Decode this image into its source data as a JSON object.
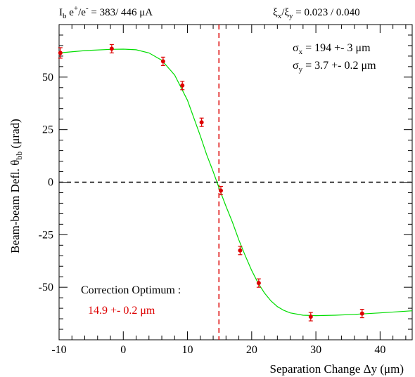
{
  "header": {
    "current_label": "I",
    "current_sub": "b",
    "current_species_e1": " e",
    "current_sup_plus": "+",
    "current_slash": "/e",
    "current_sup_minus": "-",
    "current_values": " =   383/  446 μA",
    "tune_xi1": "ξ",
    "tune_sub_x": "x",
    "tune_slash": "/ξ",
    "tune_sub_y": "y",
    "tune_values": " =  0.023 / 0.040"
  },
  "annotations": {
    "sigma": "σ",
    "sigma_x_sub": "x",
    "sigma_x_value": " = 194 +- 3 μm",
    "sigma_y_sub": "y",
    "sigma_y_value": " =  3.7 +- 0.2 μm",
    "optimum_label": "Correction Optimum :",
    "optimum_value": "14.9 +-  0.2 μm"
  },
  "chart_data": {
    "type": "scatter",
    "xlabel": "Separation Change Δy (μm)",
    "ylabel_main": "Beam-beam Defl. θ",
    "ylabel_sub": "bb",
    "ylabel_unit": " (μrad)",
    "xlim": [
      -10,
      45
    ],
    "ylim": [
      -75,
      75
    ],
    "xticks": [
      -10,
      0,
      10,
      20,
      30,
      40
    ],
    "yticks": [
      50,
      25,
      0,
      -25,
      -50
    ],
    "grid": false,
    "colors": {
      "points": "#dd0000",
      "fit_curve": "#00dd00",
      "optimum_line": "#dd0000",
      "zero_line": "#000000"
    },
    "series": [
      {
        "values": [
          {
            "x": -9.8,
            "y": 61.5,
            "err": 2.5
          },
          {
            "x": -1.8,
            "y": 63.5,
            "err": 2.0
          },
          {
            "x": 6.2,
            "y": 57.5,
            "err": 2.0
          },
          {
            "x": 9.2,
            "y": 46.0,
            "err": 2.0
          },
          {
            "x": 12.2,
            "y": 28.5,
            "err": 2.0
          },
          {
            "x": 15.2,
            "y": -4.0,
            "err": 2.0
          },
          {
            "x": 18.2,
            "y": -32.5,
            "err": 2.0
          },
          {
            "x": 21.1,
            "y": -48.0,
            "err": 2.0
          },
          {
            "x": 29.2,
            "y": -64.0,
            "err": 2.0
          },
          {
            "x": 37.2,
            "y": -62.5,
            "err": 2.0
          }
        ]
      }
    ],
    "fit_curve": [
      {
        "x": -10,
        "y": 61.5
      },
      {
        "x": -6,
        "y": 62.6
      },
      {
        "x": -2,
        "y": 63.2
      },
      {
        "x": 0,
        "y": 63.3
      },
      {
        "x": 2,
        "y": 63.0
      },
      {
        "x": 4,
        "y": 61.5
      },
      {
        "x": 6,
        "y": 58.0
      },
      {
        "x": 8,
        "y": 51.0
      },
      {
        "x": 10,
        "y": 39.0
      },
      {
        "x": 12,
        "y": 22.0
      },
      {
        "x": 13,
        "y": 13.0
      },
      {
        "x": 14,
        "y": 5.0
      },
      {
        "x": 15,
        "y": -3.5
      },
      {
        "x": 16,
        "y": -11.5
      },
      {
        "x": 17,
        "y": -19.0
      },
      {
        "x": 18,
        "y": -27.5
      },
      {
        "x": 19,
        "y": -35.0
      },
      {
        "x": 20,
        "y": -42.0
      },
      {
        "x": 21,
        "y": -48.0
      },
      {
        "x": 22,
        "y": -52.8
      },
      {
        "x": 23,
        "y": -56.5
      },
      {
        "x": 24,
        "y": -59.2
      },
      {
        "x": 25,
        "y": -61.0
      },
      {
        "x": 26,
        "y": -62.2
      },
      {
        "x": 28,
        "y": -63.3
      },
      {
        "x": 30,
        "y": -63.5
      },
      {
        "x": 33,
        "y": -63.3
      },
      {
        "x": 36,
        "y": -62.9
      },
      {
        "x": 40,
        "y": -62.2
      },
      {
        "x": 45,
        "y": -61.2
      }
    ],
    "optimum_x": 14.9,
    "zero_line_y": 0
  }
}
